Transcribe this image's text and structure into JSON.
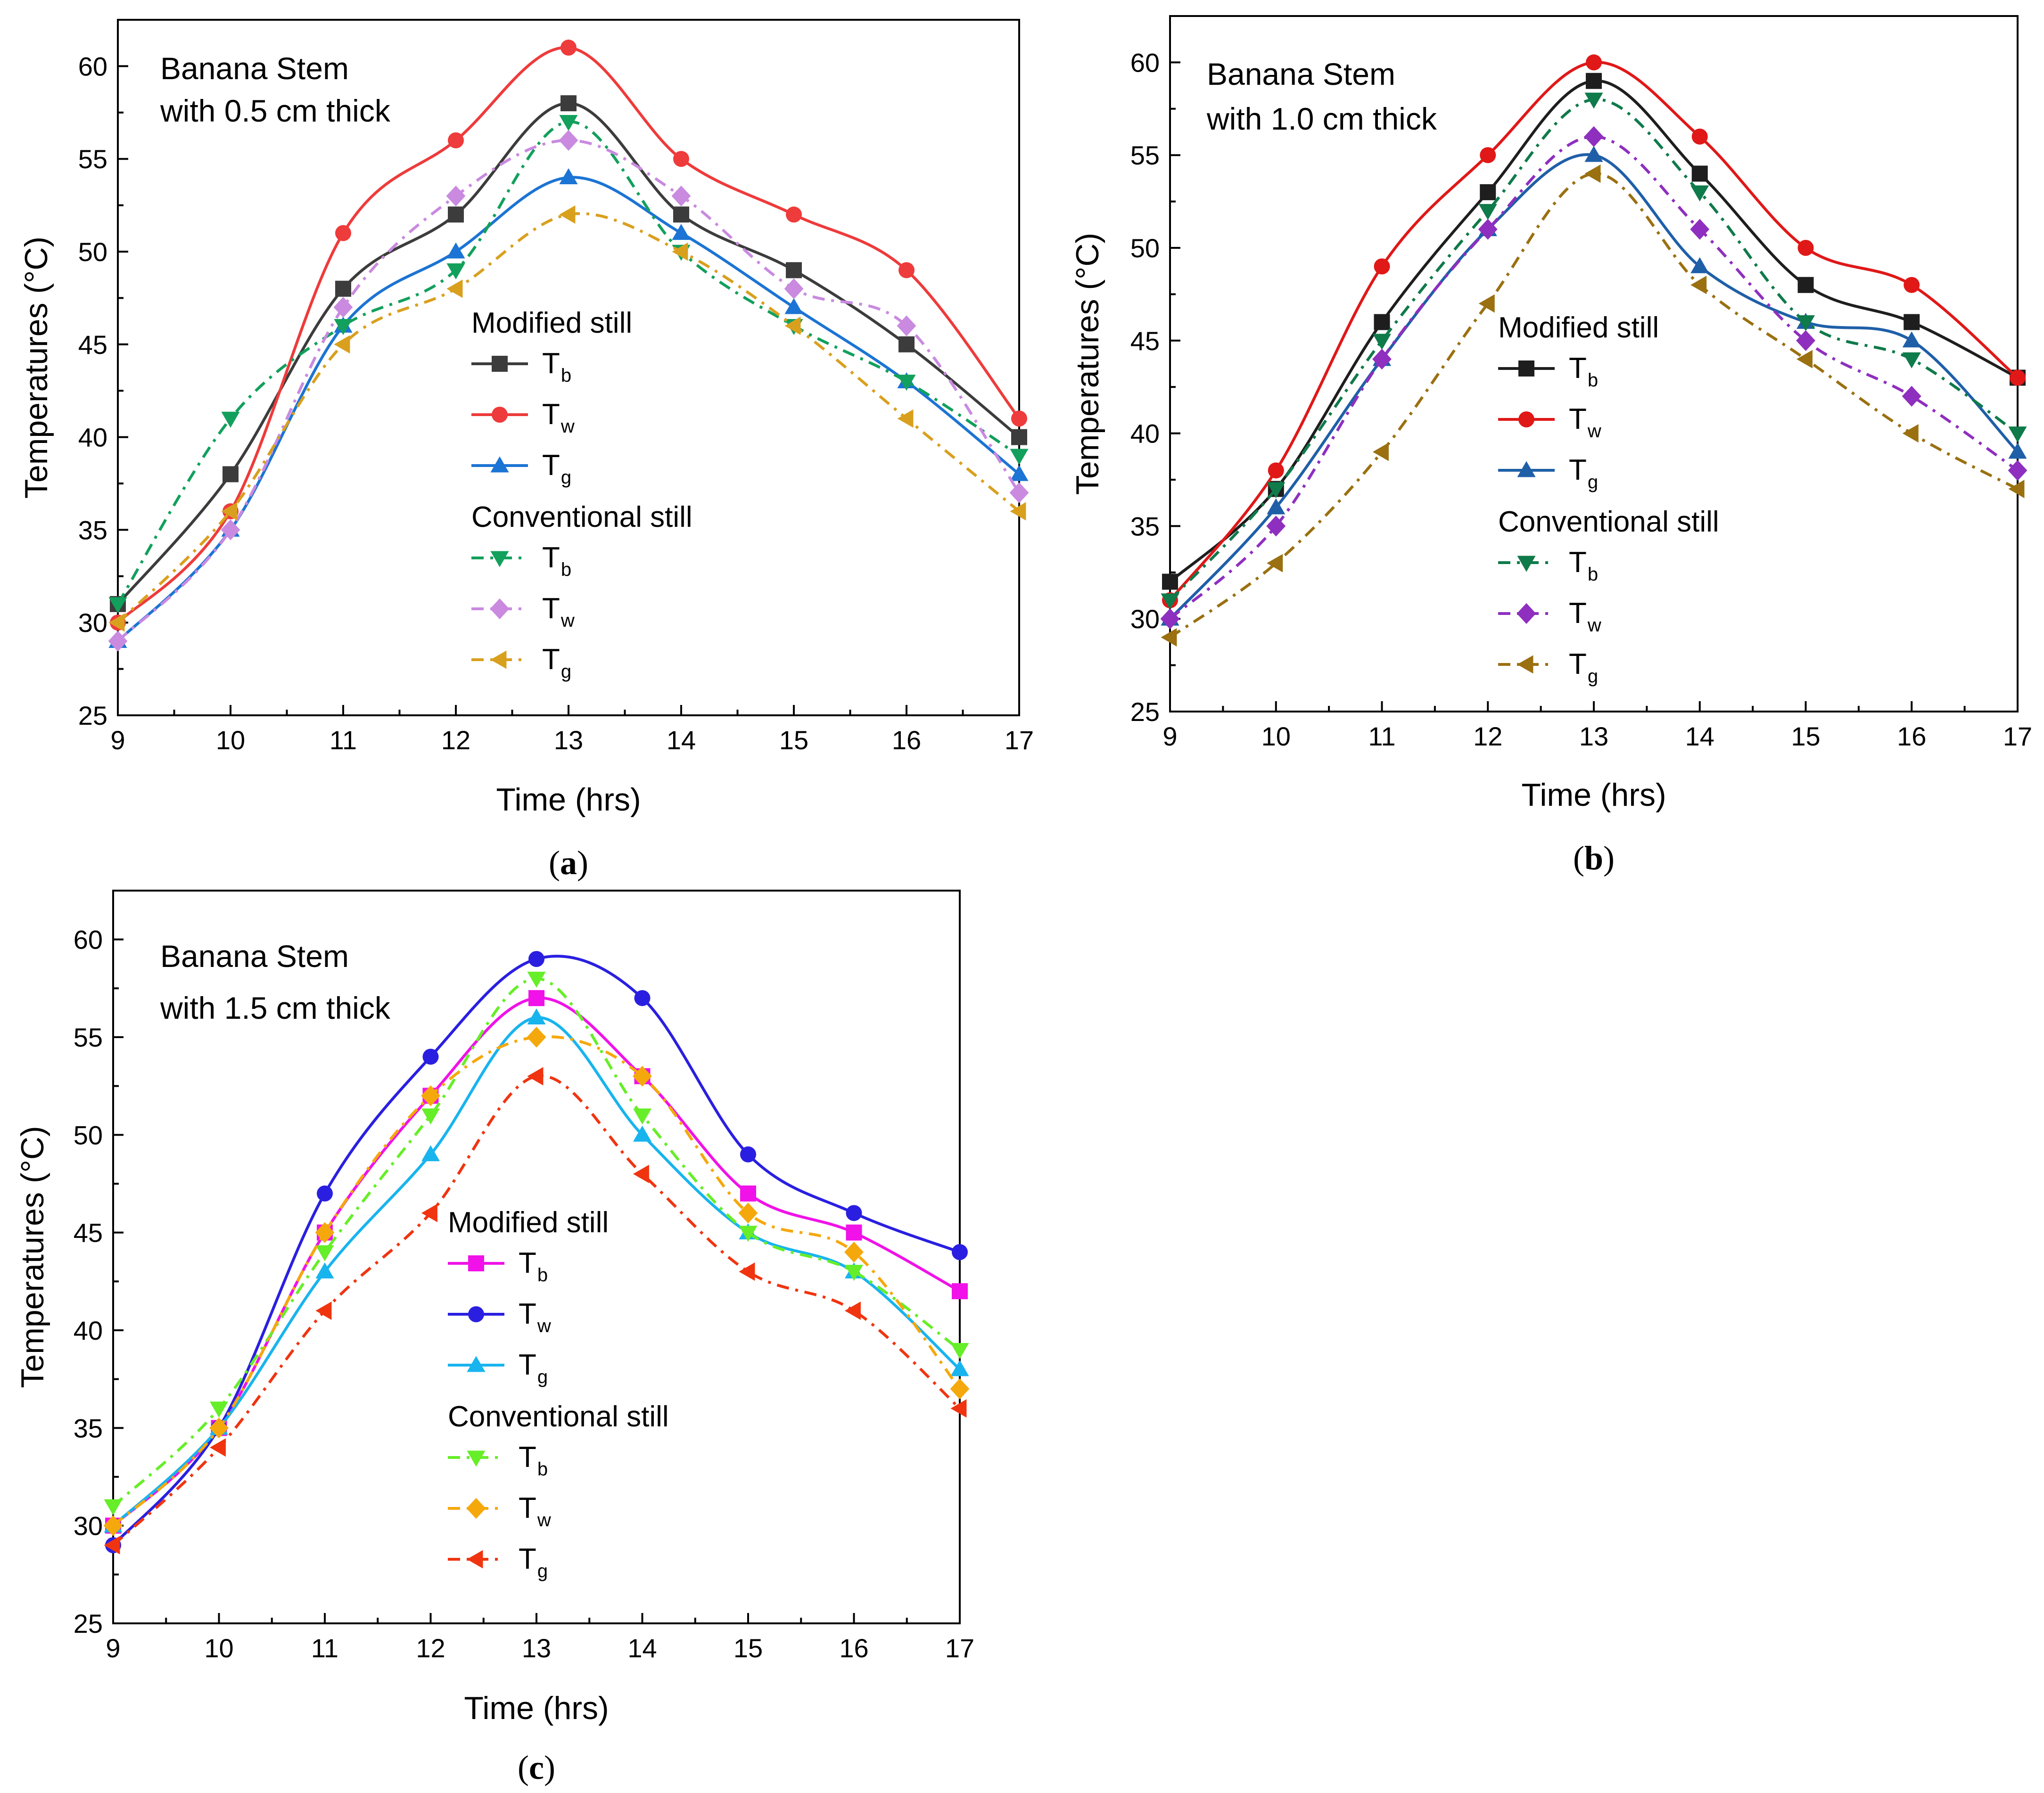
{
  "chart_data": [
    {
      "type": "line",
      "panel_label": "a",
      "annotation": [
        "Banana Stem",
        "with 0.5 cm thick"
      ],
      "xlabel": "Time (hrs)",
      "ylabel": "Temperatures (°C)",
      "x": [
        9,
        10,
        11,
        12,
        13,
        14,
        15,
        16,
        17
      ],
      "xlim": [
        9,
        17
      ],
      "ylim": [
        25,
        62.5
      ],
      "yticks": [
        25,
        30,
        35,
        40,
        45,
        50,
        55,
        60
      ],
      "legend_groups": [
        "Modified still",
        "Conventional still"
      ],
      "series": [
        {
          "name": "T",
          "sub": "b",
          "group": "Modified still",
          "color": "#3c3c3c",
          "marker": "square",
          "dash": "solid",
          "values": [
            31,
            38,
            48,
            52,
            58,
            52,
            49,
            45,
            40
          ]
        },
        {
          "name": "T",
          "sub": "w",
          "group": "Modified still",
          "color": "#ee3b3b",
          "marker": "circle",
          "dash": "solid",
          "values": [
            30,
            36,
            51,
            56,
            61,
            55,
            52,
            49,
            41
          ]
        },
        {
          "name": "T",
          "sub": "g",
          "group": "Modified still",
          "color": "#1c74d4",
          "marker": "triangle-up",
          "dash": "solid",
          "values": [
            29,
            35,
            46,
            50,
            54,
            51,
            47,
            43,
            38
          ]
        },
        {
          "name": "T",
          "sub": "b",
          "group": "Conventional still",
          "color": "#12a05c",
          "marker": "triangle-down",
          "dash": "dashdot",
          "values": [
            31,
            41,
            46,
            49,
            57,
            50,
            46,
            43,
            39
          ]
        },
        {
          "name": "T",
          "sub": "w",
          "group": "Conventional still",
          "color": "#c98ae0",
          "marker": "diamond",
          "dash": "dashdot",
          "values": [
            29,
            35,
            47,
            53,
            56,
            53,
            48,
            46,
            37
          ]
        },
        {
          "name": "T",
          "sub": "g",
          "group": "Conventional still",
          "color": "#d9a01e",
          "marker": "triangle-left",
          "dash": "dashdot",
          "values": [
            30,
            36,
            45,
            48,
            52,
            50,
            46,
            41,
            36
          ]
        }
      ]
    },
    {
      "type": "line",
      "panel_label": "b",
      "annotation": [
        "Banana Stem",
        "with 1.0 cm thick"
      ],
      "xlabel": "Time (hrs)",
      "ylabel": "Temperatures (°C)",
      "x": [
        9,
        10,
        11,
        12,
        13,
        14,
        15,
        16,
        17
      ],
      "xlim": [
        9,
        17
      ],
      "ylim": [
        25,
        62.5
      ],
      "yticks": [
        25,
        30,
        35,
        40,
        45,
        50,
        55,
        60
      ],
      "legend_groups": [
        "Modified still",
        "Conventional still"
      ],
      "series": [
        {
          "name": "T",
          "sub": "b",
          "group": "Modified still",
          "color": "#1e1e1e",
          "marker": "square",
          "dash": "solid",
          "values": [
            32,
            37,
            46,
            53,
            59,
            54,
            48,
            46,
            43
          ]
        },
        {
          "name": "T",
          "sub": "w",
          "group": "Modified still",
          "color": "#e01818",
          "marker": "circle",
          "dash": "solid",
          "values": [
            31,
            38,
            49,
            55,
            60,
            56,
            50,
            48,
            43
          ]
        },
        {
          "name": "T",
          "sub": "g",
          "group": "Modified still",
          "color": "#1f5fa8",
          "marker": "triangle-up",
          "dash": "solid",
          "values": [
            30,
            36,
            44,
            51,
            55,
            49,
            46,
            45,
            39
          ]
        },
        {
          "name": "T",
          "sub": "b",
          "group": "Conventional still",
          "color": "#0f7a4a",
          "marker": "triangle-down",
          "dash": "dashdot",
          "values": [
            31,
            37,
            45,
            52,
            58,
            53,
            46,
            44,
            40
          ]
        },
        {
          "name": "T",
          "sub": "w",
          "group": "Conventional still",
          "color": "#8e2fbf",
          "marker": "diamond",
          "dash": "dashdot",
          "values": [
            30,
            35,
            44,
            51,
            56,
            51,
            45,
            42,
            38
          ]
        },
        {
          "name": "T",
          "sub": "g",
          "group": "Conventional still",
          "color": "#9a7010",
          "marker": "triangle-left",
          "dash": "dashdot",
          "values": [
            29,
            33,
            39,
            47,
            54,
            48,
            44,
            40,
            37
          ]
        }
      ]
    },
    {
      "type": "line",
      "panel_label": "c",
      "annotation": [
        "Banana Stem",
        "with 1.5 cm thick"
      ],
      "xlabel": "Time (hrs)",
      "ylabel": "Temperatures (°C)",
      "x": [
        9,
        10,
        11,
        12,
        13,
        14,
        15,
        16,
        17
      ],
      "xlim": [
        9,
        17
      ],
      "ylim": [
        25,
        62.5
      ],
      "yticks": [
        25,
        30,
        35,
        40,
        45,
        50,
        55,
        60
      ],
      "legend_groups": [
        "Modified still",
        "Conventional still"
      ],
      "series": [
        {
          "name": "T",
          "sub": "b",
          "group": "Modified still",
          "color": "#f012e8",
          "marker": "square",
          "dash": "solid",
          "values": [
            30,
            35,
            45,
            52,
            57,
            53,
            47,
            45,
            42
          ]
        },
        {
          "name": "T",
          "sub": "w",
          "group": "Modified still",
          "color": "#2a1fe0",
          "marker": "circle",
          "dash": "solid",
          "values": [
            29,
            35,
            47,
            54,
            59,
            57,
            49,
            46,
            44
          ]
        },
        {
          "name": "T",
          "sub": "g",
          "group": "Modified still",
          "color": "#18b4ee",
          "marker": "triangle-up",
          "dash": "solid",
          "values": [
            30,
            35,
            43,
            49,
            56,
            50,
            45,
            43,
            38
          ]
        },
        {
          "name": "T",
          "sub": "b",
          "group": "Conventional still",
          "color": "#66ee28",
          "marker": "triangle-down",
          "dash": "dashdot",
          "values": [
            31,
            36,
            44,
            51,
            58,
            51,
            45,
            43,
            39
          ]
        },
        {
          "name": "T",
          "sub": "w",
          "group": "Conventional still",
          "color": "#f5a80c",
          "marker": "diamond",
          "dash": "dashdot",
          "values": [
            30,
            35,
            45,
            52,
            55,
            53,
            46,
            44,
            37
          ]
        },
        {
          "name": "T",
          "sub": "g",
          "group": "Conventional still",
          "color": "#f03410",
          "marker": "triangle-left",
          "dash": "dashdot",
          "values": [
            29,
            34,
            41,
            46,
            53,
            48,
            43,
            41,
            36
          ]
        }
      ]
    }
  ]
}
